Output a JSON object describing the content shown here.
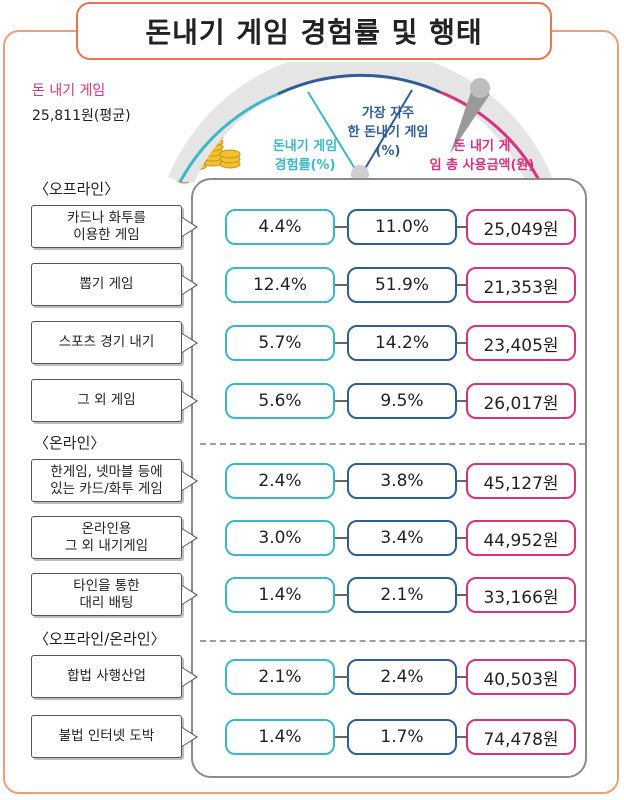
{
  "title": "돈내기 게임 경험률 및 행태",
  "average": {
    "label": "돈 내기 게임",
    "value": "25,811원(평균)"
  },
  "colors": {
    "experience": "#3bb8c8",
    "frequent": "#2f5e96",
    "amount": "#d9317f",
    "frame": "#e8754f"
  },
  "chart_data": {
    "type": "table",
    "title": "돈내기 게임 경험률 및 행태",
    "columns": [
      "돈내기 게임 경험률(%)",
      "가장 자주한 돈내기 게임(%)",
      "돈 내기 게임 총 사용금액(원)"
    ],
    "sections": [
      {
        "name": "〈오프라인〉",
        "rows": [
          {
            "label": "카드나 화투를\n이용한 게임",
            "experience": "4.4%",
            "frequent": "11.0%",
            "amount": "25,049원"
          },
          {
            "label": "뽑기 게임",
            "experience": "12.4%",
            "frequent": "51.9%",
            "amount": "21,353원"
          },
          {
            "label": "스포츠 경기 내기",
            "experience": "5.7%",
            "frequent": "14.2%",
            "amount": "23,405원"
          },
          {
            "label": "그 외 게임",
            "experience": "5.6%",
            "frequent": "9.5%",
            "amount": "26,017원"
          }
        ]
      },
      {
        "name": "〈온라인〉",
        "rows": [
          {
            "label": "한게임, 넷마블 등에\n있는 카드/화투 게임",
            "experience": "2.4%",
            "frequent": "3.8%",
            "amount": "45,127원"
          },
          {
            "label": "온라인용\n그 외 내기게임",
            "experience": "3.0%",
            "frequent": "3.4%",
            "amount": "44,952원"
          },
          {
            "label": "타인을 통한\n대리 배팅",
            "experience": "1.4%",
            "frequent": "2.1%",
            "amount": "33,166원"
          }
        ]
      },
      {
        "name": "〈오프라인/온라인〉",
        "rows": [
          {
            "label": "합법 사행산업",
            "experience": "2.1%",
            "frequent": "2.4%",
            "amount": "40,503원"
          },
          {
            "label": "불법 인터넷 도박",
            "experience": "1.4%",
            "frequent": "1.7%",
            "amount": "74,478원"
          }
        ]
      }
    ]
  }
}
